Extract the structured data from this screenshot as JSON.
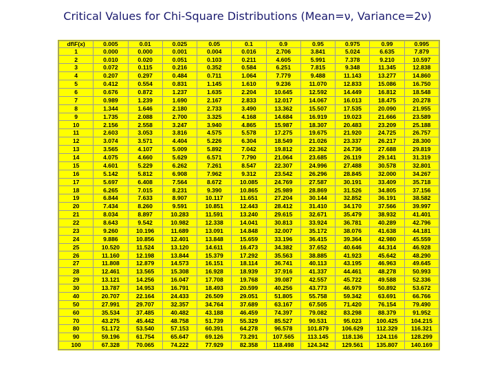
{
  "title": "Critical Values for Chi-Square Distributions (Mean=ν, Variance=2ν)",
  "table": {
    "headers": [
      "df\\F(x)",
      "0.005",
      "0.01",
      "0.025",
      "0.05",
      "0.1",
      "0.9",
      "0.95",
      "0.975",
      "0.99",
      "0.995"
    ],
    "rows": [
      [
        "1",
        "0.000",
        "0.000",
        "0.001",
        "0.004",
        "0.016",
        "2.706",
        "3.841",
        "5.024",
        "6.635",
        "7.879"
      ],
      [
        "2",
        "0.010",
        "0.020",
        "0.051",
        "0.103",
        "0.211",
        "4.605",
        "5.991",
        "7.378",
        "9.210",
        "10.597"
      ],
      [
        "3",
        "0.072",
        "0.115",
        "0.216",
        "0.352",
        "0.584",
        "6.251",
        "7.815",
        "9.348",
        "11.345",
        "12.838"
      ],
      [
        "4",
        "0.207",
        "0.297",
        "0.484",
        "0.711",
        "1.064",
        "7.779",
        "9.488",
        "11.143",
        "13.277",
        "14.860"
      ],
      [
        "5",
        "0.412",
        "0.554",
        "0.831",
        "1.145",
        "1.610",
        "9.236",
        "11.070",
        "12.833",
        "15.086",
        "16.750"
      ],
      [
        "6",
        "0.676",
        "0.872",
        "1.237",
        "1.635",
        "2.204",
        "10.645",
        "12.592",
        "14.449",
        "16.812",
        "18.548"
      ],
      [
        "7",
        "0.989",
        "1.239",
        "1.690",
        "2.167",
        "2.833",
        "12.017",
        "14.067",
        "16.013",
        "18.475",
        "20.278"
      ],
      [
        "8",
        "1.344",
        "1.646",
        "2.180",
        "2.733",
        "3.490",
        "13.362",
        "15.507",
        "17.535",
        "20.090",
        "21.955"
      ],
      [
        "9",
        "1.735",
        "2.088",
        "2.700",
        "3.325",
        "4.168",
        "14.684",
        "16.919",
        "19.023",
        "21.666",
        "23.589"
      ],
      [
        "10",
        "2.156",
        "2.558",
        "3.247",
        "3.940",
        "4.865",
        "15.987",
        "18.307",
        "20.483",
        "23.209",
        "25.188"
      ],
      [
        "11",
        "2.603",
        "3.053",
        "3.816",
        "4.575",
        "5.578",
        "17.275",
        "19.675",
        "21.920",
        "24.725",
        "26.757"
      ],
      [
        "12",
        "3.074",
        "3.571",
        "4.404",
        "5.226",
        "6.304",
        "18.549",
        "21.026",
        "23.337",
        "26.217",
        "28.300"
      ],
      [
        "13",
        "3.565",
        "4.107",
        "5.009",
        "5.892",
        "7.042",
        "19.812",
        "22.362",
        "24.736",
        "27.688",
        "29.819"
      ],
      [
        "14",
        "4.075",
        "4.660",
        "5.629",
        "6.571",
        "7.790",
        "21.064",
        "23.685",
        "26.119",
        "29.141",
        "31.319"
      ],
      [
        "15",
        "4.601",
        "5.229",
        "6.262",
        "7.261",
        "8.547",
        "22.307",
        "24.996",
        "27.488",
        "30.578",
        "32.801"
      ],
      [
        "16",
        "5.142",
        "5.812",
        "6.908",
        "7.962",
        "9.312",
        "23.542",
        "26.296",
        "28.845",
        "32.000",
        "34.267"
      ],
      [
        "17",
        "5.697",
        "6.408",
        "7.564",
        "8.672",
        "10.085",
        "24.769",
        "27.587",
        "30.191",
        "33.409",
        "35.718"
      ],
      [
        "18",
        "6.265",
        "7.015",
        "8.231",
        "9.390",
        "10.865",
        "25.989",
        "28.869",
        "31.526",
        "34.805",
        "37.156"
      ],
      [
        "19",
        "6.844",
        "7.633",
        "8.907",
        "10.117",
        "11.651",
        "27.204",
        "30.144",
        "32.852",
        "36.191",
        "38.582"
      ],
      [
        "20",
        "7.434",
        "8.260",
        "9.591",
        "10.851",
        "12.443",
        "28.412",
        "31.410",
        "34.170",
        "37.566",
        "39.997"
      ],
      [
        "21",
        "8.034",
        "8.897",
        "10.283",
        "11.591",
        "13.240",
        "29.615",
        "32.671",
        "35.479",
        "38.932",
        "41.401"
      ],
      [
        "22",
        "8.643",
        "9.542",
        "10.982",
        "12.338",
        "14.041",
        "30.813",
        "33.924",
        "36.781",
        "40.289",
        "42.796"
      ],
      [
        "23",
        "9.260",
        "10.196",
        "11.689",
        "13.091",
        "14.848",
        "32.007",
        "35.172",
        "38.076",
        "41.638",
        "44.181"
      ],
      [
        "24",
        "9.886",
        "10.856",
        "12.401",
        "13.848",
        "15.659",
        "33.196",
        "36.415",
        "39.364",
        "42.980",
        "45.559"
      ],
      [
        "25",
        "10.520",
        "11.524",
        "13.120",
        "14.611",
        "16.473",
        "34.382",
        "37.652",
        "40.646",
        "44.314",
        "46.928"
      ],
      [
        "26",
        "11.160",
        "12.198",
        "13.844",
        "15.379",
        "17.292",
        "35.563",
        "38.885",
        "41.923",
        "45.642",
        "48.290"
      ],
      [
        "27",
        "11.808",
        "12.879",
        "14.573",
        "16.151",
        "18.114",
        "36.741",
        "40.113",
        "43.195",
        "46.963",
        "49.645"
      ],
      [
        "28",
        "12.461",
        "13.565",
        "15.308",
        "16.928",
        "18.939",
        "37.916",
        "41.337",
        "44.461",
        "48.278",
        "50.993"
      ],
      [
        "29",
        "13.121",
        "14.256",
        "16.047",
        "17.708",
        "19.768",
        "39.087",
        "42.557",
        "45.722",
        "49.588",
        "52.336"
      ],
      [
        "30",
        "13.787",
        "14.953",
        "16.791",
        "18.493",
        "20.599",
        "40.256",
        "43.773",
        "46.979",
        "50.892",
        "53.672"
      ],
      [
        "40",
        "20.707",
        "22.164",
        "24.433",
        "26.509",
        "29.051",
        "51.805",
        "55.758",
        "59.342",
        "63.691",
        "66.766"
      ],
      [
        "50",
        "27.991",
        "29.707",
        "32.357",
        "34.764",
        "37.689",
        "63.167",
        "67.505",
        "71.420",
        "76.154",
        "79.490"
      ],
      [
        "60",
        "35.534",
        "37.485",
        "40.482",
        "43.188",
        "46.459",
        "74.397",
        "79.082",
        "83.298",
        "88.379",
        "91.952"
      ],
      [
        "70",
        "43.275",
        "45.442",
        "48.758",
        "51.739",
        "55.329",
        "85.527",
        "90.531",
        "95.023",
        "100.425",
        "104.215"
      ],
      [
        "80",
        "51.172",
        "53.540",
        "57.153",
        "60.391",
        "64.278",
        "96.578",
        "101.879",
        "106.629",
        "112.329",
        "116.321"
      ],
      [
        "90",
        "59.196",
        "61.754",
        "65.647",
        "69.126",
        "73.291",
        "107.565",
        "113.145",
        "118.136",
        "124.116",
        "128.299"
      ],
      [
        "100",
        "67.328",
        "70.065",
        "74.222",
        "77.929",
        "82.358",
        "118.498",
        "124.342",
        "129.561",
        "135.807",
        "140.169"
      ]
    ]
  },
  "colors": {
    "table_background": "#ffff00",
    "title_color": "#1a1a6e",
    "grid_line": "#9a9a9a"
  }
}
